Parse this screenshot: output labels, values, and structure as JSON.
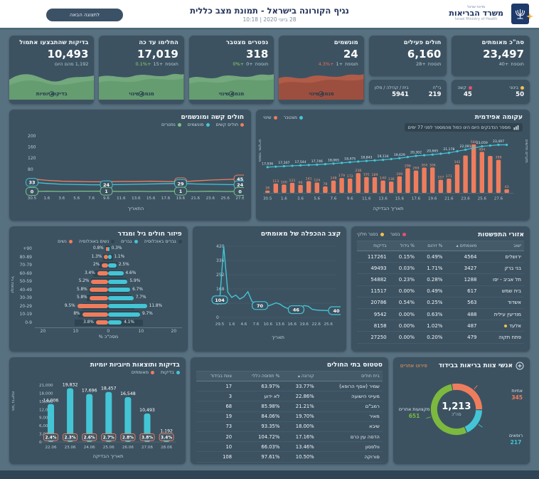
{
  "app": {
    "title": "נגיף הקורונה בישראל - תמונת מצב כללית",
    "datetime": "28 ביוני 2020 | 10:18",
    "next_view_button": "לתצוגה הבאה",
    "brand": {
      "state": "מדינת ישראל",
      "ministry": "משרד הבריאות",
      "ministry_en": "Israel Ministry of Health"
    }
  },
  "colors": {
    "background": "#587181",
    "card": "#3c5261",
    "teal": "#43c5d5",
    "orange": "#ef7d5d",
    "green": "#7cc387",
    "green_area": "#74a87d",
    "red_area": "#b05c49",
    "yellow": "#f2c14e",
    "pink": "#e8506e",
    "positive": "#8fd460",
    "negative": "#ef6e50",
    "donut_green": "#7cb93e"
  },
  "kpis": {
    "confirmed": {
      "title": "סה\"כ מאומתים",
      "value": "23,497",
      "delta_label": "תוספת",
      "delta_value": "+40",
      "breakdown": [
        {
          "label": "בינוני",
          "value": "50",
          "color": "#f2c14e"
        },
        {
          "label": "קשה",
          "value": "45",
          "color": "#e8506e"
        }
      ]
    },
    "active": {
      "title": "חולים פעילים",
      "value": "6,160",
      "delta_label": "תוספת",
      "delta_value": "+28",
      "breakdown": [
        {
          "label": "בי\"ח",
          "value": "219"
        },
        {
          "label": "בית / קהילה / מלון",
          "value": "5941"
        }
      ]
    },
    "ventilated": {
      "title": "מונשמים",
      "value": "24",
      "delta_label": "תוספת",
      "delta_value": "+1",
      "pct": "+4.3%",
      "trend_label": "מגמת שינוי"
    },
    "deaths": {
      "title": "נפטרים מצטבר",
      "value": "318",
      "delta_label": "תוספת",
      "delta_value": "+0",
      "pct": "+0%",
      "trend_label": "מגמת שינוי"
    },
    "recovered": {
      "title": "החלימו עד כה",
      "value": "17,019",
      "delta_label": "תוספת",
      "delta_value": "+15",
      "pct": "+0.1%",
      "trend_label": "מגמת שינוי"
    },
    "tests": {
      "title": "בדיקות שהתבצעו אתמול",
      "value": "10,493",
      "note": "1,192 מהם היום",
      "trend_label": "בדיקות יומיות"
    }
  },
  "chart_data": [
    {
      "id": "severe_ventilated",
      "type": "line",
      "title": "חולים קשה ומונשמים",
      "xlabel": "התאריך",
      "x": [
        "30.5",
        "1.6",
        "3.6",
        "5.6",
        "7.6",
        "9.6",
        "11.6",
        "13.6",
        "15.6",
        "17.6",
        "19.6",
        "21.6",
        "23.6",
        "25.6",
        "27.6"
      ],
      "yticks": [
        80,
        120,
        160,
        200
      ],
      "series": [
        {
          "name": "חולים קשים",
          "color": "#ef7d5d",
          "values": [
            45,
            40,
            37,
            36,
            35,
            35,
            36,
            36,
            37,
            36,
            35,
            38,
            41,
            43,
            45
          ]
        },
        {
          "name": "מונשמים",
          "color": "#43c5d5",
          "values": [
            33,
            29,
            26,
            25,
            24,
            24,
            25,
            26,
            27,
            28,
            29,
            27,
            26,
            25,
            24
          ]
        },
        {
          "name": "נפטרים",
          "color": "#7cc387",
          "values": [
            0,
            1,
            0,
            1,
            1,
            1,
            0,
            1,
            0,
            1,
            1,
            0,
            1,
            0,
            0
          ]
        }
      ],
      "callouts": [
        {
          "xi": 0,
          "si": 1,
          "v": "33"
        },
        {
          "xi": 0,
          "si": 2,
          "v": "0"
        },
        {
          "xi": 5,
          "si": 1,
          "v": "24"
        },
        {
          "xi": 5,
          "si": 2,
          "v": "1"
        },
        {
          "xi": 10,
          "si": 0,
          "v": "35"
        },
        {
          "xi": 10,
          "si": 1,
          "v": "29"
        },
        {
          "xi": 10,
          "si": 2,
          "v": "1"
        },
        {
          "xi": 14,
          "si": 0,
          "v": "45"
        },
        {
          "xi": 14,
          "si": 1,
          "v": "24"
        },
        {
          "xi": 14,
          "si": 2,
          "v": "0"
        }
      ]
    },
    {
      "id": "epidemic_curve",
      "type": "bar+line",
      "title": "עקומה אפידמית",
      "note": "מספר הנדבקים היום הינו כפול מהמספר לפני 77 ימים",
      "xlabel": "תאריך הבדיקה",
      "ylabel_left": "מספר מקרים",
      "ylabel_right": "מקרים חדשים",
      "legend": [
        {
          "label": "מצטבר",
          "color": "#43c5d5"
        },
        {
          "label": "שינוי",
          "color": "#ef7d5d"
        }
      ],
      "bar_color": "#ef7d5d",
      "line_color": "#43c5d5",
      "x_ticks": [
        "30.5",
        "1.6",
        "3.6",
        "5.6",
        "7.6",
        "9.6",
        "11.6",
        "13.6",
        "15.6",
        "17.6",
        "19.6",
        "21.6",
        "23.6",
        "25.6",
        "27.6"
      ],
      "bars": [
        28,
        113,
        100,
        121,
        96,
        141,
        124,
        78,
        148,
        179,
        172,
        238,
        191,
        189,
        149,
        136,
        199,
        296,
        269,
        304,
        306,
        157,
        171,
        342,
        450,
        584,
        494,
        445,
        398,
        43
      ],
      "bar_labels": [
        "28",
        "113",
        "100",
        "121",
        "96",
        "141",
        "124",
        "78",
        "148",
        "179",
        "172",
        "238",
        "191",
        "189",
        "149",
        "136",
        "199",
        "296",
        "269",
        "304",
        "306",
        "157",
        "171",
        "342",
        "",
        "584",
        "494",
        "",
        "398",
        "43"
      ],
      "line_values": [
        17036,
        17307,
        17544,
        17746,
        18065,
        18475,
        18843,
        19134,
        19629,
        20302,
        20665,
        21178,
        22091,
        23059,
        23497
      ],
      "line_labels": [
        "17,036",
        "17,307",
        "17,544",
        "17,746",
        "18,065",
        "18,475",
        "18,843",
        "19,134",
        "19,629",
        "20,302",
        "20,665",
        "21,178",
        "22,091",
        "23,059",
        "23,497"
      ]
    },
    {
      "id": "age_gender",
      "type": "pyramid",
      "title": "פיזור חולים גיל ומגדר",
      "xlabel": "% מסה\"כ",
      "ylabel": "קבוצת גיל",
      "legend": [
        {
          "label": "גברים באוכלוסיה",
          "color": "#2e4451"
        },
        {
          "label": "גברים",
          "color": "#43c5d5"
        },
        {
          "label": "נשים באוכלוסיה",
          "color": "#2e4451"
        },
        {
          "label": "נשים",
          "color": "#ef7d5d"
        }
      ],
      "groups": [
        "90+",
        "80-89",
        "70-79",
        "60-69",
        "50-59",
        "40-49",
        "30-39",
        "20-29",
        "10-19",
        "0-9"
      ],
      "women": [
        0.8,
        1.3,
        2,
        3.4,
        5.2,
        5.8,
        5.8,
        9.5,
        8,
        3.8
      ],
      "men": [
        0.3,
        1.1,
        2.5,
        4.6,
        5.9,
        6.7,
        7.7,
        11.8,
        9.7,
        4.1
      ],
      "women_pop": [
        0.9,
        1.7,
        3,
        4.6,
        5.4,
        6,
        6.6,
        7.8,
        9.2,
        10.4
      ],
      "men_pop": [
        0.6,
        1.4,
        2.8,
        4.4,
        5.6,
        6.2,
        6.8,
        8,
        9.4,
        10.6
      ],
      "xticks": [
        "20",
        "10",
        "0",
        "10",
        "20"
      ]
    },
    {
      "id": "doubling_rate",
      "type": "line",
      "title": "קצב ההכפלה של מאומתים",
      "xlabel": "תאריך",
      "color": "#43c5d5",
      "yticks": [
        0,
        84,
        168,
        252,
        336,
        420
      ],
      "x_ticks": [
        "29.5",
        "1.6",
        "4.6",
        "7.6",
        "10.6",
        "13.6",
        "16.6",
        "19.6",
        "22.6",
        "25.6"
      ],
      "values": [
        104,
        420,
        150,
        118,
        132,
        108,
        122,
        152,
        96,
        78,
        70,
        63,
        68,
        76,
        86,
        78,
        62,
        52,
        47,
        46,
        56,
        70,
        66,
        48,
        44,
        42,
        41,
        40,
        40,
        40
      ],
      "callouts": [
        {
          "i": 0,
          "v": "104"
        },
        {
          "i": 10,
          "v": "70"
        },
        {
          "i": 19,
          "v": "46"
        },
        {
          "i": 29,
          "v": "40"
        }
      ]
    },
    {
      "id": "daily_tests",
      "type": "bar",
      "title": "בדיקות ותוצאות חיוביות יומיות",
      "xlabel": "תאריך הבדיקה",
      "ylabel": "מס' בדיקות",
      "legend": [
        {
          "label": "בדיקות",
          "color": "#43c5d5"
        },
        {
          "label": "מאומתים",
          "color": "#ef7d5d"
        }
      ],
      "categories": [
        "22.06",
        "23.06",
        "24.06",
        "25.06",
        "26.06",
        "27.06",
        "28.06"
      ],
      "values": [
        14006,
        19832,
        17696,
        18457,
        16548,
        10493,
        1192
      ],
      "labels": [
        "14,006",
        "19,832",
        "17,696",
        "18,457",
        "16,548",
        "10,493",
        "1,192"
      ],
      "positive_pct": [
        "2.4%",
        "2.3%",
        "2.6%",
        "2.7%",
        "2.8%",
        "3.8%",
        "3.4%"
      ],
      "yticks": [
        "21,000",
        "18,000",
        "15,000",
        "12,000",
        "9,000",
        "6,000",
        "3,000",
        "0"
      ],
      "ylim": [
        0,
        21000
      ]
    },
    {
      "id": "staff_isolation",
      "type": "pie",
      "title": "אנשי צוות בריאות בבידוד",
      "details_link": "פירוט אחרים",
      "total": "1,213",
      "total_label": "סה\"כ",
      "segments": [
        {
          "label": "אחיות",
          "value": 345,
          "display": "345",
          "color": "#ef7d5d"
        },
        {
          "label": "רופאים",
          "value": 217,
          "display": "217",
          "color": "#43c5d5"
        },
        {
          "label": "מקצועות אחרים",
          "value": 651,
          "display": "651",
          "color": "#7cb93e"
        }
      ]
    }
  ],
  "tables": {
    "spread": {
      "title": "אזורי התפשטות",
      "legend": [
        {
          "label": "בסגר",
          "color": "#e8506e"
        },
        {
          "label": "בסגר חלקי",
          "color": "#f2c14e"
        }
      ],
      "columns": [
        "ישוב",
        "מאומתים ▴",
        "% זיהום",
        "% גידול",
        "בדיקות"
      ],
      "rows": [
        [
          "ירושלים",
          "4564",
          "0.49%",
          "0.15%",
          "117261"
        ],
        [
          "בני ברק",
          "3427",
          "1.71%",
          "0.03%",
          "49493"
        ],
        [
          "תל אביב - יפו",
          "1288",
          "0.28%",
          "0.23%",
          "54882"
        ],
        [
          "בית שמש",
          "617",
          "0.49%",
          "0.00%",
          "11517"
        ],
        [
          "אשדוד",
          "563",
          "0.25%",
          "0.54%",
          "20786"
        ],
        [
          "מודיעין עילית",
          "488",
          "0.63%",
          "0.00%",
          "9542"
        ],
        [
          "אלעד",
          "487",
          "1.02%",
          "0.00%",
          "8158"
        ],
        [
          "פתח תקוה",
          "479",
          "0.20%",
          "0.00%",
          "27250"
        ]
      ],
      "row_markers": {
        "6": "#f2c14e"
      }
    },
    "hospitals": {
      "title": "סטטוס בתי החולים",
      "columns": [
        "בית חולים",
        "קורונה ▴",
        "% תפוסה כללי",
        "צוות בבידוד"
      ],
      "rows": [
        [
          "שמיר (אסף הרופא)",
          "33.77%",
          "63.97%",
          "17"
        ],
        [
          "מעייני הישועה",
          "22.86%",
          "לא ידוע",
          "3"
        ],
        [
          "רמב\"ם",
          "21.21%",
          "85.98%",
          "68"
        ],
        [
          "מאיר",
          "19.70%",
          "84.06%",
          "19"
        ],
        [
          "שיבא",
          "18.00%",
          "93.35%",
          "73"
        ],
        [
          "הדסה עין כרם",
          "17.16%",
          "104.72%",
          "20"
        ],
        [
          "וולפסון",
          "13.46%",
          "66.03%",
          "10"
        ],
        [
          "סורוקה",
          "10.50%",
          "97.61%",
          "108"
        ]
      ]
    }
  }
}
